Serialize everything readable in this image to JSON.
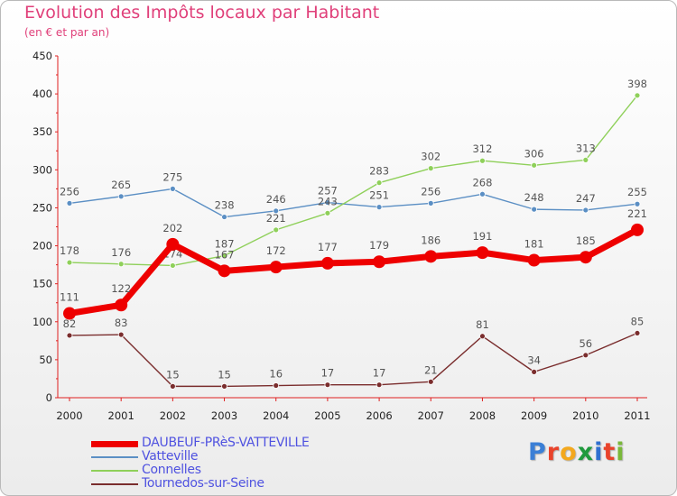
{
  "title": "Evolution des Impôts locaux par Habitant",
  "subtitle": "(en € et par an)",
  "logo": {
    "letters": [
      "P",
      "r",
      "o",
      "x",
      "i",
      "t",
      "i"
    ],
    "colors": [
      "#3b7fd6",
      "#e9432b",
      "#f3a81d",
      "#1f9a3d",
      "#2f6fd0",
      "#e9432b",
      "#7ab83a"
    ]
  },
  "chart_data": {
    "type": "line",
    "x": [
      "2000",
      "2001",
      "2002",
      "2003",
      "2004",
      "2005",
      "2006",
      "2007",
      "2008",
      "2009",
      "2010",
      "2011"
    ],
    "ylim": [
      0,
      450
    ],
    "yticks": [
      "0",
      "50",
      "100",
      "150",
      "200",
      "250",
      "300",
      "350",
      "400",
      "450"
    ],
    "grid": false,
    "legend_position": "bottom-left",
    "series": [
      {
        "name": "DAUBEUF-PRèS-VATTEVILLE",
        "values": [
          111,
          122,
          202,
          167,
          172,
          177,
          179,
          186,
          191,
          181,
          185,
          221
        ],
        "color": "#ee0000"
      },
      {
        "name": "Vatteville",
        "values": [
          256,
          265,
          275,
          238,
          246,
          257,
          251,
          256,
          268,
          248,
          247,
          255
        ],
        "color": "#5b8fc4"
      },
      {
        "name": "Connelles",
        "values": [
          178,
          176,
          174,
          187,
          221,
          243,
          283,
          302,
          312,
          306,
          313,
          398
        ],
        "color": "#8fd05a"
      },
      {
        "name": "Tournedos-sur-Seine",
        "values": [
          82,
          83,
          15,
          15,
          16,
          17,
          17,
          21,
          81,
          34,
          56,
          85
        ],
        "color": "#7a2d2d"
      }
    ]
  }
}
